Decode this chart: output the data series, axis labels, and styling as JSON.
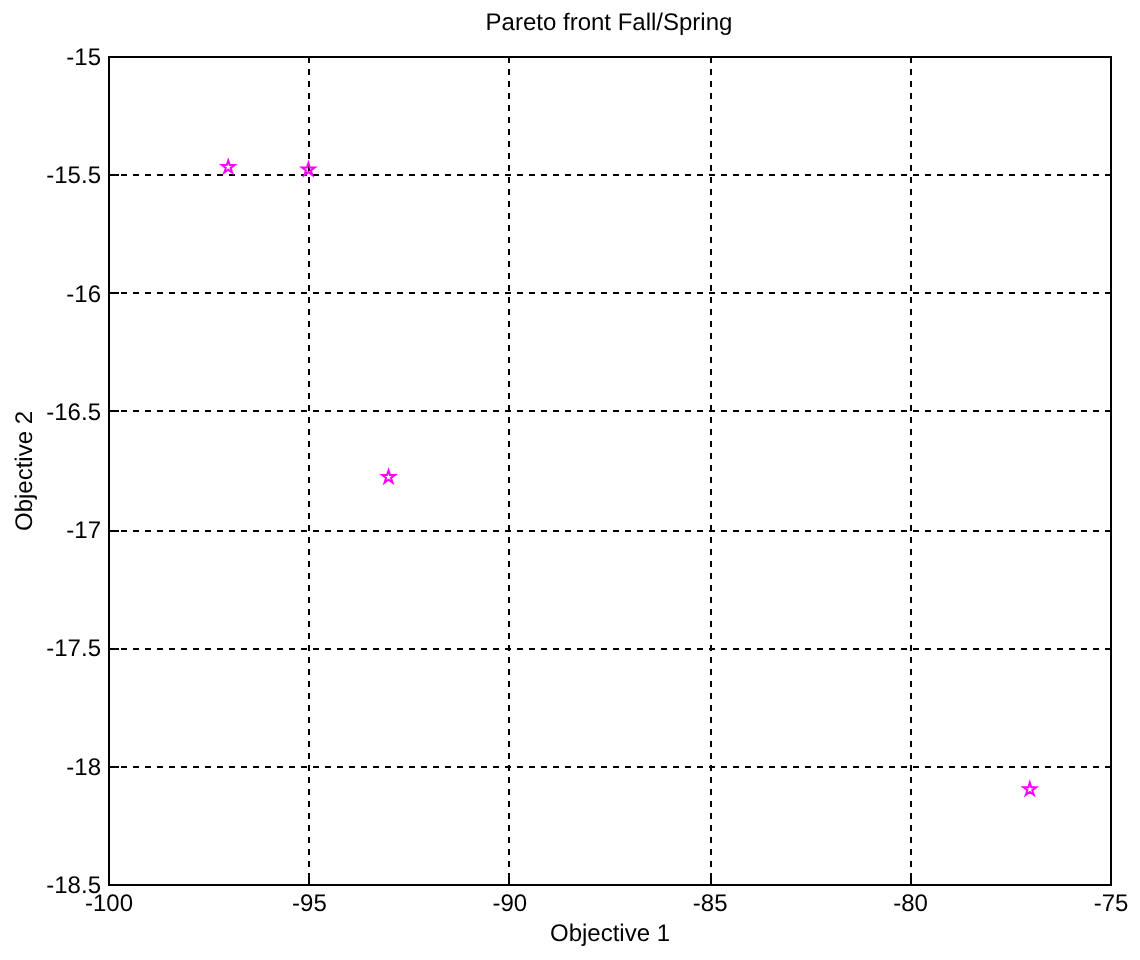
{
  "chart_data": {
    "type": "scatter",
    "title": "Pareto front Fall/Spring",
    "xlabel": "Objective 1",
    "ylabel": "Objective 2",
    "x": [
      -97,
      -95,
      -93,
      -77
    ],
    "series": [
      {
        "color": "#ff00ff",
        "values": [
          -15.47,
          -15.48,
          -16.78,
          -18.1
        ]
      }
    ],
    "xlim": [
      -100,
      -75
    ],
    "xticks": [
      -100,
      -95,
      -90,
      -85,
      -80,
      -75
    ],
    "ylim": [
      -18.5,
      -15
    ],
    "yticks": [
      -18.5,
      -18,
      -17.5,
      -17,
      -16.5,
      -16,
      -15.5,
      -15
    ],
    "grid": true,
    "marker": "star",
    "line_style": "dashed"
  }
}
